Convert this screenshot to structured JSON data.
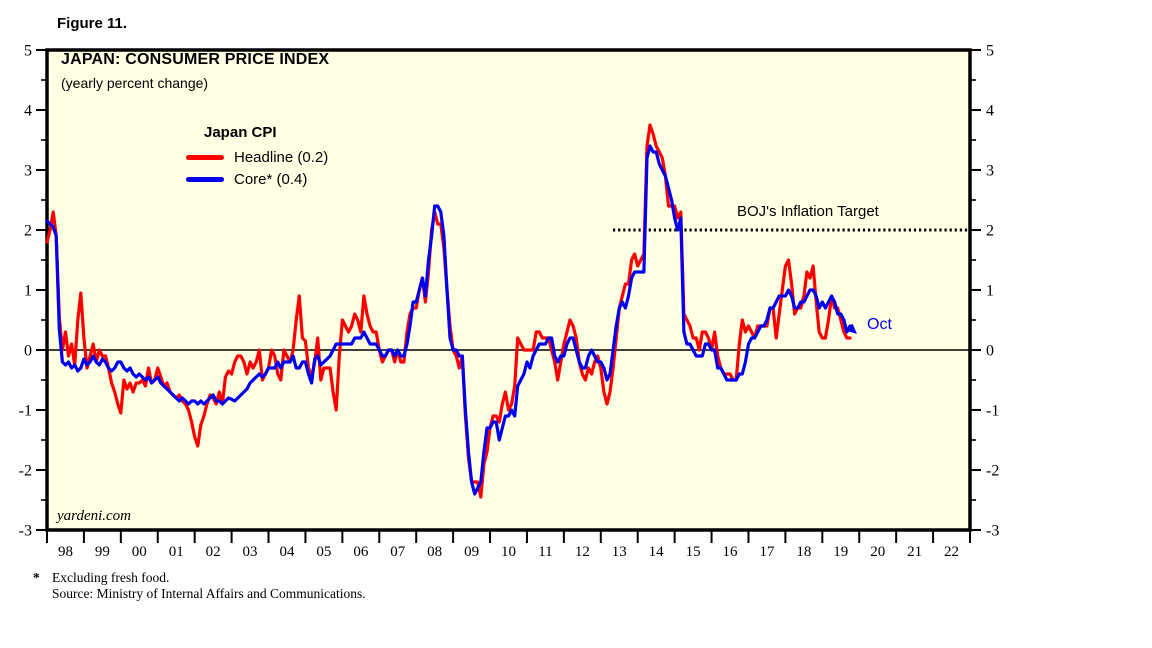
{
  "figure_label": "Figure 11.",
  "header": {
    "title": "JAPAN: CONSUMER PRICE INDEX",
    "subtitle": "(yearly percent change)"
  },
  "legend": {
    "title": "Japan CPI",
    "items": [
      {
        "label": "Headline (0.2)",
        "color": "#FF0000"
      },
      {
        "label": "Core* (0.4)",
        "color": "#0000EE"
      }
    ]
  },
  "annotations": {
    "target_label": "BOJ's Inflation Target",
    "last_point_label": "Oct"
  },
  "watermark": "yardeni.com",
  "footnotes": {
    "star": "*",
    "line1": "Excluding fresh food.",
    "line2": "Source: Ministry of Internal Affairs and Communications."
  },
  "colors": {
    "headline_red": "#FF0000",
    "core_blue": "#0000EE",
    "plot_background": "#FFFFE3",
    "frame": "#000000",
    "target_line": "#000000"
  },
  "chart_data": {
    "type": "line",
    "title": "JAPAN: CONSUMER PRICE INDEX",
    "subtitle": "(yearly percent change)",
    "x_frequency": "monthly",
    "x_start": "1998-01",
    "x_end": "2019-10",
    "x_axis_years": [
      "98",
      "99",
      "00",
      "01",
      "02",
      "03",
      "04",
      "05",
      "06",
      "07",
      "08",
      "09",
      "10",
      "11",
      "12",
      "13",
      "14",
      "15",
      "16",
      "17",
      "18",
      "19",
      "20",
      "21",
      "22"
    ],
    "x_axis_span_years": 25,
    "ylim": [
      -3,
      5
    ],
    "y_ticks": [
      5,
      4,
      3,
      2,
      1,
      0,
      -1,
      -2,
      -3
    ],
    "y_minor_step": 0.5,
    "grid": "zero-line-only",
    "legend_position": "top-left-inside",
    "reference_lines": [
      {
        "label": "BOJ's Inflation Target",
        "y": 2,
        "style": "dotted",
        "x_start_year": 2013.25,
        "x_end_year": 2023
      }
    ],
    "series": [
      {
        "name": "Headline",
        "latest_value": 0.2,
        "color": "#FF0000",
        "values": [
          1.8,
          2.0,
          2.3,
          1.9,
          0.55,
          0.0,
          0.3,
          -0.1,
          0.1,
          -0.25,
          0.5,
          0.95,
          0.2,
          -0.3,
          -0.1,
          0.1,
          -0.2,
          0.0,
          -0.1,
          -0.1,
          -0.3,
          -0.55,
          -0.7,
          -0.9,
          -1.05,
          -0.5,
          -0.65,
          -0.55,
          -0.7,
          -0.55,
          -0.55,
          -0.5,
          -0.6,
          -0.3,
          -0.55,
          -0.5,
          -0.3,
          -0.45,
          -0.6,
          -0.55,
          -0.7,
          -0.75,
          -0.8,
          -0.75,
          -0.85,
          -0.9,
          -1.0,
          -1.2,
          -1.45,
          -1.6,
          -1.25,
          -1.1,
          -0.9,
          -0.75,
          -0.8,
          -0.9,
          -0.7,
          -0.9,
          -0.45,
          -0.35,
          -0.4,
          -0.2,
          -0.1,
          -0.1,
          -0.2,
          -0.4,
          -0.2,
          -0.3,
          -0.2,
          0.0,
          -0.5,
          -0.4,
          -0.3,
          0.0,
          -0.1,
          -0.4,
          -0.5,
          0.0,
          -0.1,
          -0.2,
          0.0,
          0.5,
          0.9,
          0.2,
          0.15,
          -0.3,
          -0.45,
          -0.2,
          0.2,
          -0.5,
          -0.3,
          -0.3,
          -0.3,
          -0.7,
          -1.0,
          -0.1,
          0.5,
          0.4,
          0.3,
          0.4,
          0.6,
          0.5,
          0.3,
          0.9,
          0.6,
          0.4,
          0.3,
          0.3,
          0.0,
          -0.2,
          -0.1,
          0.0,
          0.0,
          -0.2,
          0.0,
          -0.2,
          -0.2,
          0.3,
          0.6,
          0.7,
          0.7,
          1.0,
          1.2,
          0.8,
          1.3,
          2.0,
          2.3,
          2.1,
          2.1,
          1.7,
          1.0,
          0.4,
          0.0,
          -0.1,
          -0.3,
          -0.1,
          -1.1,
          -1.8,
          -2.2,
          -2.2,
          -2.2,
          -2.45,
          -1.9,
          -1.7,
          -1.3,
          -1.1,
          -1.1,
          -1.2,
          -0.9,
          -0.7,
          -1.0,
          -0.9,
          -0.6,
          0.2,
          0.1,
          0.0,
          0.0,
          0.0,
          0.0,
          0.3,
          0.3,
          0.2,
          0.2,
          0.2,
          0.0,
          -0.2,
          -0.5,
          -0.2,
          0.1,
          0.3,
          0.5,
          0.4,
          0.2,
          -0.2,
          -0.4,
          -0.5,
          -0.3,
          -0.4,
          -0.2,
          -0.1,
          -0.3,
          -0.7,
          -0.9,
          -0.7,
          -0.3,
          0.2,
          0.7,
          0.9,
          1.1,
          1.1,
          1.5,
          1.6,
          1.4,
          1.5,
          1.6,
          3.4,
          3.75,
          3.6,
          3.4,
          3.3,
          3.2,
          2.9,
          2.4,
          2.4,
          2.4,
          2.2,
          2.3,
          0.6,
          0.5,
          0.4,
          0.2,
          0.2,
          0.0,
          0.3,
          0.3,
          0.2,
          0.0,
          0.3,
          -0.1,
          -0.3,
          -0.4,
          -0.4,
          -0.4,
          -0.5,
          -0.5,
          0.1,
          0.5,
          0.3,
          0.4,
          0.3,
          0.2,
          0.4,
          0.4,
          0.4,
          0.4,
          0.7,
          0.7,
          0.2,
          0.6,
          1.0,
          1.4,
          1.5,
          1.1,
          0.6,
          0.7,
          0.7,
          0.9,
          1.3,
          1.2,
          1.4,
          0.8,
          0.3,
          0.2,
          0.2,
          0.5,
          0.9,
          0.7,
          0.7,
          0.5,
          0.3,
          0.2,
          0.2
        ]
      },
      {
        "name": "Core (excluding fresh food)",
        "latest_value": 0.4,
        "color": "#0000EE",
        "values": [
          2.15,
          2.1,
          2.05,
          1.9,
          0.35,
          -0.2,
          -0.25,
          -0.2,
          -0.3,
          -0.25,
          -0.35,
          -0.3,
          -0.15,
          -0.25,
          -0.2,
          -0.1,
          -0.2,
          -0.25,
          -0.15,
          -0.2,
          -0.3,
          -0.35,
          -0.3,
          -0.2,
          -0.2,
          -0.3,
          -0.35,
          -0.3,
          -0.4,
          -0.45,
          -0.4,
          -0.45,
          -0.5,
          -0.45,
          -0.55,
          -0.5,
          -0.45,
          -0.55,
          -0.6,
          -0.65,
          -0.7,
          -0.75,
          -0.8,
          -0.85,
          -0.8,
          -0.85,
          -0.9,
          -0.85,
          -0.85,
          -0.9,
          -0.85,
          -0.9,
          -0.85,
          -0.8,
          -0.75,
          -0.85,
          -0.85,
          -0.9,
          -0.85,
          -0.8,
          -0.82,
          -0.85,
          -0.8,
          -0.75,
          -0.7,
          -0.65,
          -0.55,
          -0.5,
          -0.45,
          -0.4,
          -0.45,
          -0.4,
          -0.3,
          -0.3,
          -0.3,
          -0.2,
          -0.3,
          -0.2,
          -0.2,
          -0.2,
          -0.1,
          -0.3,
          -0.3,
          -0.2,
          -0.2,
          -0.4,
          -0.55,
          -0.15,
          -0.1,
          -0.25,
          -0.2,
          -0.15,
          -0.1,
          0.0,
          0.1,
          0.1,
          0.1,
          0.1,
          0.1,
          0.1,
          0.2,
          0.2,
          0.2,
          0.3,
          0.2,
          0.1,
          0.1,
          0.1,
          0.0,
          -0.1,
          -0.1,
          0.0,
          0.0,
          -0.1,
          0.0,
          -0.1,
          -0.1,
          0.1,
          0.4,
          0.8,
          0.8,
          1.0,
          1.2,
          0.9,
          1.5,
          1.9,
          2.4,
          2.4,
          2.3,
          1.9,
          1.0,
          0.2,
          0.0,
          0.0,
          -0.1,
          -0.1,
          -1.0,
          -1.7,
          -2.2,
          -2.4,
          -2.3,
          -2.2,
          -1.7,
          -1.3,
          -1.3,
          -1.2,
          -1.2,
          -1.5,
          -1.3,
          -1.1,
          -1.1,
          -1.0,
          -1.1,
          -0.6,
          -0.5,
          -0.4,
          -0.2,
          -0.3,
          -0.1,
          0.0,
          0.1,
          0.1,
          0.1,
          0.2,
          0.2,
          -0.1,
          -0.2,
          -0.1,
          -0.1,
          0.1,
          0.2,
          0.2,
          0.0,
          -0.2,
          -0.3,
          -0.3,
          -0.1,
          0.0,
          -0.1,
          -0.2,
          -0.2,
          -0.3,
          -0.5,
          -0.4,
          0.0,
          0.4,
          0.7,
          0.8,
          0.7,
          0.9,
          1.2,
          1.3,
          1.3,
          1.3,
          1.3,
          3.2,
          3.4,
          3.3,
          3.3,
          3.1,
          3.0,
          2.9,
          2.7,
          2.5,
          2.2,
          2.0,
          2.2,
          0.3,
          0.1,
          0.1,
          0.0,
          -0.1,
          -0.1,
          -0.1,
          0.1,
          0.1,
          0.0,
          0.0,
          -0.3,
          -0.3,
          -0.4,
          -0.5,
          -0.5,
          -0.5,
          -0.5,
          -0.4,
          -0.4,
          -0.2,
          0.1,
          0.2,
          0.2,
          0.3,
          0.4,
          0.4,
          0.5,
          0.7,
          0.7,
          0.8,
          0.9,
          0.9,
          0.9,
          1.0,
          0.9,
          0.7,
          0.7,
          0.8,
          0.8,
          0.9,
          1.0,
          1.0,
          0.9,
          0.7,
          0.8,
          0.7,
          0.8,
          0.9,
          0.8,
          0.6,
          0.6,
          0.5,
          0.3,
          0.4
        ]
      }
    ]
  }
}
